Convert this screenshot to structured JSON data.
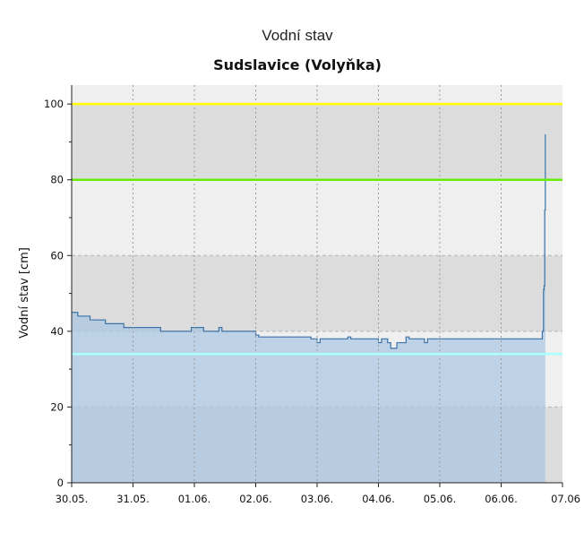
{
  "chart_data": {
    "type": "area",
    "title": "Vodní stav",
    "subtitle": "Sudslavice (Volyňka)",
    "ylabel": "Vodní stav [cm]",
    "xlabel": "",
    "ylim": [
      0,
      105
    ],
    "x_ticks": [
      "30.05.",
      "31.05.",
      "01.06.",
      "02.06.",
      "03.06.",
      "04.06.",
      "05.06.",
      "06.06.",
      "07.06"
    ],
    "y_ticks": [
      0,
      20,
      40,
      60,
      80,
      100
    ],
    "grid": true,
    "background_bands": [
      {
        "from": 0,
        "to": 20,
        "color": "#dcdcdc"
      },
      {
        "from": 20,
        "to": 40,
        "color": "#efefef"
      },
      {
        "from": 40,
        "to": 60,
        "color": "#dcdcdc"
      },
      {
        "from": 60,
        "to": 80,
        "color": "#efefef"
      },
      {
        "from": 80,
        "to": 100,
        "color": "#dcdcdc"
      },
      {
        "from": 100,
        "to": 105,
        "color": "#efefef"
      }
    ],
    "thresholds": [
      {
        "value": 100,
        "color": "#ffff00"
      },
      {
        "value": 80,
        "color": "#66ee00"
      },
      {
        "value": 34,
        "color": "#aaffff"
      }
    ],
    "series": [
      {
        "color": "#3a73aa",
        "fill": "#a9c6e3",
        "points": [
          [
            0.0,
            45
          ],
          [
            0.1,
            44
          ],
          [
            0.3,
            43
          ],
          [
            0.55,
            42
          ],
          [
            0.85,
            41
          ],
          [
            1.45,
            40
          ],
          [
            1.95,
            41
          ],
          [
            2.15,
            40
          ],
          [
            2.4,
            41
          ],
          [
            2.45,
            40
          ],
          [
            3.0,
            39
          ],
          [
            3.05,
            38.5
          ],
          [
            3.9,
            38
          ],
          [
            4.0,
            37
          ],
          [
            4.05,
            38
          ],
          [
            4.5,
            38.5
          ],
          [
            4.55,
            38
          ],
          [
            5.0,
            37
          ],
          [
            5.05,
            38
          ],
          [
            5.15,
            37
          ],
          [
            5.2,
            35.5
          ],
          [
            5.3,
            37
          ],
          [
            5.45,
            38.5
          ],
          [
            5.5,
            38
          ],
          [
            5.75,
            37
          ],
          [
            5.8,
            38
          ],
          [
            7.65,
            38
          ],
          [
            7.67,
            40
          ],
          [
            7.69,
            51
          ],
          [
            7.7,
            52
          ],
          [
            7.71,
            72
          ],
          [
            7.72,
            92
          ]
        ]
      }
    ]
  }
}
